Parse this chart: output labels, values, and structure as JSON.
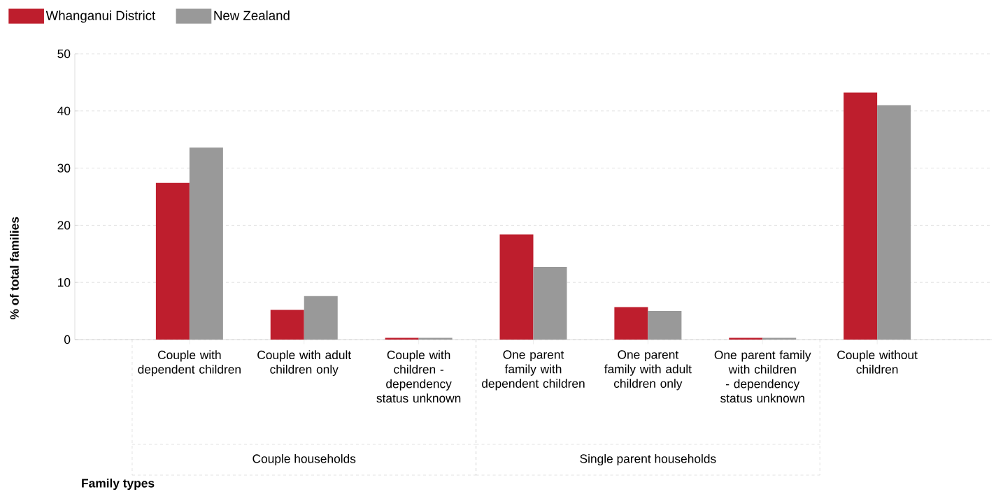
{
  "chart_data": {
    "type": "bar",
    "ylabel": "% of total families",
    "categories": [
      "Couple with dependent children",
      "Couple with adult children only",
      "Couple with children - dependency status unknown",
      "One parent family with dependent children",
      "One parent family with adult children only",
      "One parent family with children - dependency status unknown",
      "Couple without children"
    ],
    "series": [
      {
        "name": "Whanganui District",
        "color": "#be1e2d",
        "values": [
          27.4,
          5.2,
          0.3,
          18.4,
          5.7,
          0.3,
          43.2
        ]
      },
      {
        "name": "New Zealand",
        "color": "#999999",
        "values": [
          33.6,
          7.6,
          0.3,
          12.7,
          5.0,
          0.3,
          41.0
        ]
      }
    ],
    "annotations": [
      "Couple households",
      "Single parent households",
      "Family types"
    ],
    "ylim": [
      0,
      50
    ],
    "yticks": [
      0,
      10,
      20,
      30,
      40,
      50
    ],
    "grid": "y",
    "legend": "top left"
  }
}
